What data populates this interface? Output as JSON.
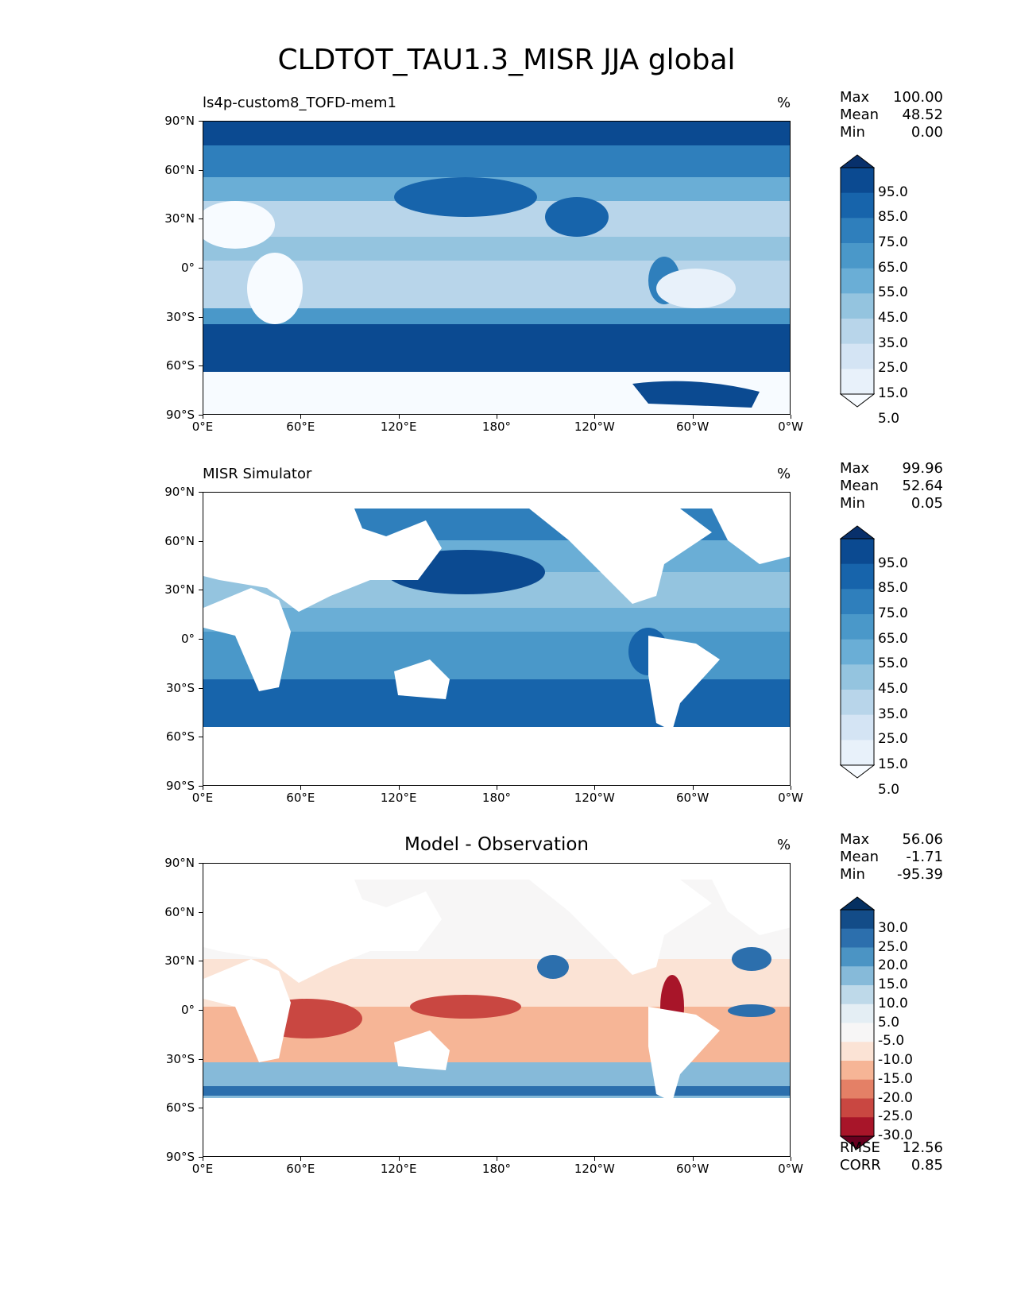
{
  "figure_title": "CLDTOT_TAU1.3_MISR JJA global",
  "x_tick_labels": [
    "0°E",
    "60°E",
    "120°E",
    "180°",
    "120°W",
    "60°W",
    "0°W"
  ],
  "y_tick_labels": [
    "90°N",
    "60°N",
    "30°N",
    "0°",
    "30°S",
    "60°S",
    "90°S"
  ],
  "panels": [
    {
      "title": "ls4p-custom8_TOFD-mem1",
      "units": "%",
      "stats": {
        "max_label": "Max",
        "max": "100.00",
        "mean_label": "Mean",
        "mean": "48.52",
        "min_label": "Min",
        "min": "0.00"
      },
      "colorbar": [
        "95.0",
        "85.0",
        "75.0",
        "65.0",
        "55.0",
        "45.0",
        "35.0",
        "25.0",
        "15.0",
        "5.0"
      ],
      "colors": [
        "#08306b",
        "#0b4a91",
        "#1764ab",
        "#2f7fbc",
        "#4a98c9",
        "#6aaed6",
        "#94c4df",
        "#b8d5ea",
        "#d4e4f4",
        "#e8f1fa",
        "#f7fbff"
      ]
    },
    {
      "title": "MISR Simulator",
      "units": "%",
      "stats": {
        "max_label": "Max",
        "max": "99.96",
        "mean_label": "Mean",
        "mean": "52.64",
        "min_label": "Min",
        "min": "0.05"
      },
      "colorbar": [
        "95.0",
        "85.0",
        "75.0",
        "65.0",
        "55.0",
        "45.0",
        "35.0",
        "25.0",
        "15.0",
        "5.0"
      ],
      "colors": [
        "#08306b",
        "#0b4a91",
        "#1764ab",
        "#2f7fbc",
        "#4a98c9",
        "#6aaed6",
        "#94c4df",
        "#b8d5ea",
        "#d4e4f4",
        "#e8f1fa",
        "#f7fbff"
      ]
    },
    {
      "title": "Model - Observation",
      "units": "%",
      "stats": {
        "max_label": "Max",
        "max": "56.06",
        "mean_label": "Mean",
        "mean": "-1.71",
        "min_label": "Min",
        "min": "-95.39"
      },
      "colorbar": [
        "30.0",
        "25.0",
        "20.0",
        "15.0",
        "10.0",
        "5.0",
        "-5.0",
        "-10.0",
        "-15.0",
        "-20.0",
        "-25.0",
        "-30.0"
      ],
      "colors": [
        "#053061",
        "#134c88",
        "#2c6fad",
        "#4b94c4",
        "#86bad9",
        "#bed9e9",
        "#e4eef4",
        "#f7f6f6",
        "#fbe3d5",
        "#f6b596",
        "#e48066",
        "#c94741",
        "#a81529",
        "#67001f"
      ],
      "rmse_label": "RMSE",
      "rmse": "12.56",
      "corr_label": "CORR",
      "corr": "0.85"
    }
  ]
}
